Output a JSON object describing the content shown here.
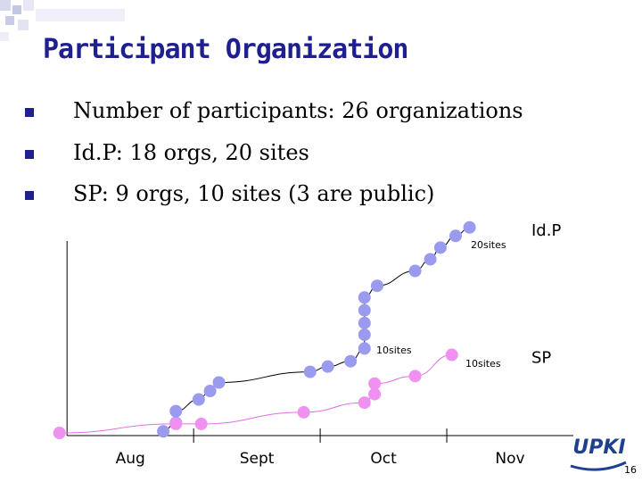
{
  "slide_title": "Participant Organization",
  "bullets": [
    "Number of participants: 26 organizations",
    "Id.P: 18 orgs, 20 sites",
    "SP: 9 orgs, 10 sites (3 are public)"
  ],
  "page_number": "16",
  "logo": "UPKI",
  "chart_data": {
    "type": "scatter-line",
    "categories": [
      "Aug",
      "Sept",
      "Oct",
      "Nov"
    ],
    "xlim": [
      -0.1,
      4.0
    ],
    "ylim": [
      0,
      20
    ],
    "series": [
      {
        "name": "Id.P",
        "color": "#9a9aee",
        "line_color": "#000000",
        "x": [
          0.76,
          0.86,
          0.86,
          1.04,
          1.13,
          1.2,
          1.92,
          2.06,
          2.24,
          2.35,
          2.35,
          2.35,
          2.35,
          2.35,
          2.45,
          2.75,
          2.87,
          2.95,
          3.07,
          3.18
        ],
        "values": [
          0.4,
          1.2,
          2.3,
          3.4,
          4.2,
          5.0,
          6.0,
          6.5,
          7.0,
          8.2,
          9.5,
          10.6,
          11.8,
          13.0,
          14.1,
          15.5,
          16.6,
          17.7,
          18.8,
          19.6
        ]
      },
      {
        "name": "SP",
        "color": "#f090f0",
        "line_color": "#e070e0",
        "x": [
          -0.06,
          0.86,
          1.06,
          1.87,
          2.35,
          2.43,
          2.43,
          2.75,
          3.04
        ],
        "values": [
          0.25,
          1.1,
          1.1,
          2.2,
          3.1,
          3.9,
          4.9,
          5.6,
          7.6
        ]
      }
    ],
    "annotations": [
      "20sites",
      "10sites",
      "10sites"
    ]
  }
}
